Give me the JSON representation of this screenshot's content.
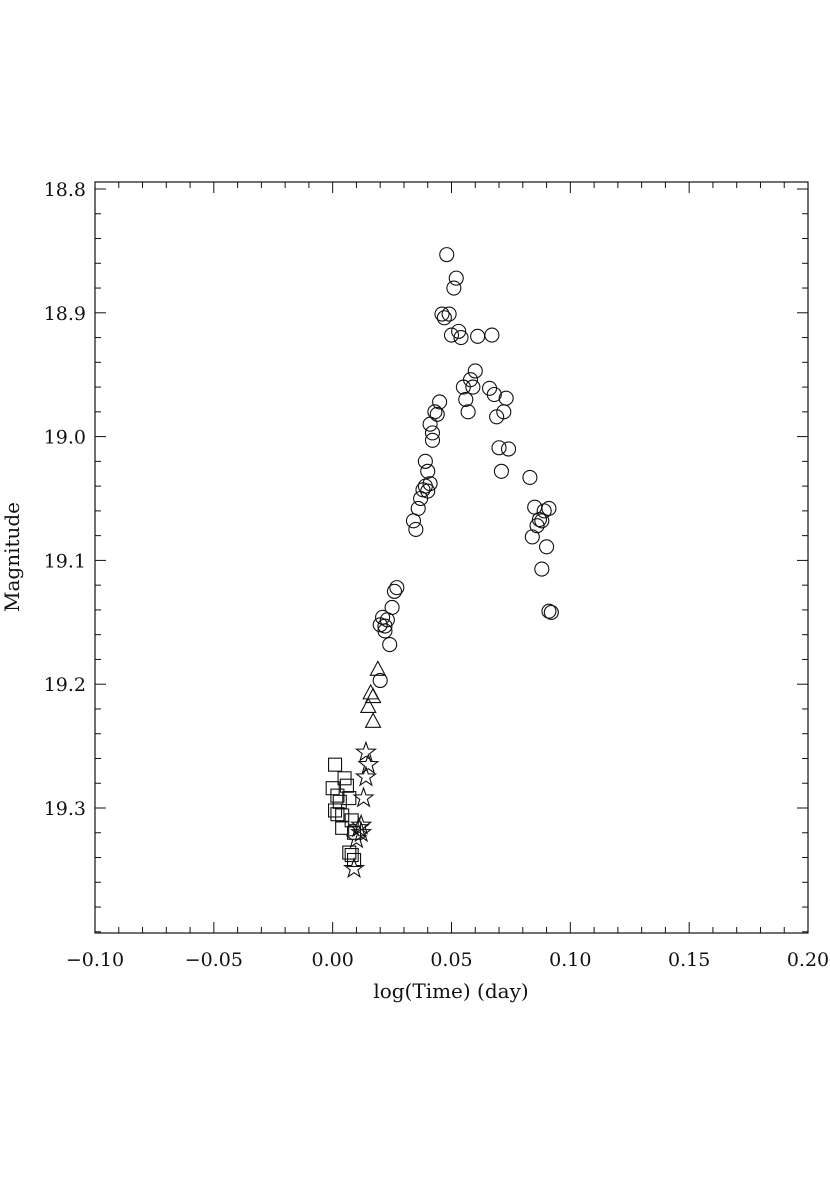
{
  "chart_data": {
    "type": "scatter",
    "xlabel": "log(Time) (day)",
    "ylabel": "Magnitude",
    "xlim": [
      -0.1,
      0.2
    ],
    "ylim": [
      18.8,
      19.4
    ],
    "y_inverted": true,
    "xticks": [
      -0.1,
      -0.05,
      0.0,
      0.05,
      0.1,
      0.15,
      0.2
    ],
    "xtick_labels": [
      "−0.10",
      "−0.05",
      "0.00",
      "0.05",
      "0.10",
      "0.15",
      "0.20"
    ],
    "yticks": [
      18.8,
      18.9,
      19.0,
      19.1,
      19.2,
      19.3
    ],
    "ytick_labels": [
      "18.8",
      "18.9",
      "19.0",
      "19.1",
      "19.2",
      "19.3"
    ],
    "x_minor_step": 0.01,
    "y_minor_step": 0.02,
    "grid": false,
    "series": [
      {
        "marker": "square",
        "points": [
          [
            0.001,
            19.265
          ],
          [
            0.0,
            19.284
          ],
          [
            0.002,
            19.29
          ],
          [
            0.005,
            19.276
          ],
          [
            0.006,
            19.282
          ],
          [
            0.003,
            19.295
          ],
          [
            0.007,
            19.292
          ],
          [
            0.001,
            19.302
          ],
          [
            0.002,
            19.305
          ],
          [
            0.004,
            19.306
          ],
          [
            0.004,
            19.316
          ],
          [
            0.008,
            19.31
          ],
          [
            0.009,
            19.32
          ],
          [
            0.007,
            19.336
          ],
          [
            0.008,
            19.338
          ],
          [
            0.009,
            19.342
          ]
        ]
      },
      {
        "marker": "star",
        "points": [
          [
            0.014,
            19.255
          ],
          [
            0.014,
            19.275
          ],
          [
            0.013,
            19.292
          ],
          [
            0.015,
            19.265
          ],
          [
            0.012,
            19.314
          ],
          [
            0.011,
            19.316
          ],
          [
            0.012,
            19.32
          ],
          [
            0.01,
            19.325
          ],
          [
            0.009,
            19.349
          ]
        ]
      },
      {
        "marker": "triangle",
        "points": [
          [
            0.019,
            19.188
          ],
          [
            0.016,
            19.207
          ],
          [
            0.017,
            19.21
          ],
          [
            0.015,
            19.218
          ],
          [
            0.017,
            19.23
          ]
        ]
      },
      {
        "marker": "circle",
        "points": [
          [
            0.02,
            19.197
          ],
          [
            0.024,
            19.168
          ],
          [
            0.02,
            19.152
          ],
          [
            0.022,
            19.153
          ],
          [
            0.022,
            19.157
          ],
          [
            0.021,
            19.146
          ],
          [
            0.023,
            19.148
          ],
          [
            0.025,
            19.138
          ],
          [
            0.026,
            19.125
          ],
          [
            0.027,
            19.122
          ],
          [
            0.035,
            19.075
          ],
          [
            0.034,
            19.068
          ],
          [
            0.036,
            19.058
          ],
          [
            0.037,
            19.05
          ],
          [
            0.038,
            19.043
          ],
          [
            0.04,
            19.044
          ],
          [
            0.039,
            19.04
          ],
          [
            0.041,
            19.038
          ],
          [
            0.04,
            19.028
          ],
          [
            0.039,
            19.02
          ],
          [
            0.042,
            19.003
          ],
          [
            0.042,
            18.997
          ],
          [
            0.041,
            18.99
          ],
          [
            0.043,
            18.98
          ],
          [
            0.044,
            18.982
          ],
          [
            0.045,
            18.972
          ],
          [
            0.048,
            18.853
          ],
          [
            0.052,
            18.872
          ],
          [
            0.051,
            18.88
          ],
          [
            0.046,
            18.901
          ],
          [
            0.047,
            18.904
          ],
          [
            0.049,
            18.901
          ],
          [
            0.053,
            18.915
          ],
          [
            0.05,
            18.918
          ],
          [
            0.054,
            18.92
          ],
          [
            0.061,
            18.919
          ],
          [
            0.067,
            18.918
          ],
          [
            0.06,
            18.947
          ],
          [
            0.058,
            18.954
          ],
          [
            0.059,
            18.96
          ],
          [
            0.055,
            18.96
          ],
          [
            0.056,
            18.97
          ],
          [
            0.057,
            18.98
          ],
          [
            0.066,
            18.961
          ],
          [
            0.068,
            18.966
          ],
          [
            0.073,
            18.969
          ],
          [
            0.072,
            18.98
          ],
          [
            0.069,
            18.984
          ],
          [
            0.07,
            19.009
          ],
          [
            0.074,
            19.01
          ],
          [
            0.071,
            19.028
          ],
          [
            0.083,
            19.033
          ],
          [
            0.085,
            19.057
          ],
          [
            0.089,
            19.06
          ],
          [
            0.091,
            19.058
          ],
          [
            0.087,
            19.067
          ],
          [
            0.086,
            19.072
          ],
          [
            0.088,
            19.068
          ],
          [
            0.084,
            19.081
          ],
          [
            0.09,
            19.089
          ],
          [
            0.088,
            19.107
          ],
          [
            0.091,
            19.141
          ],
          [
            0.092,
            19.142
          ]
        ]
      }
    ]
  }
}
